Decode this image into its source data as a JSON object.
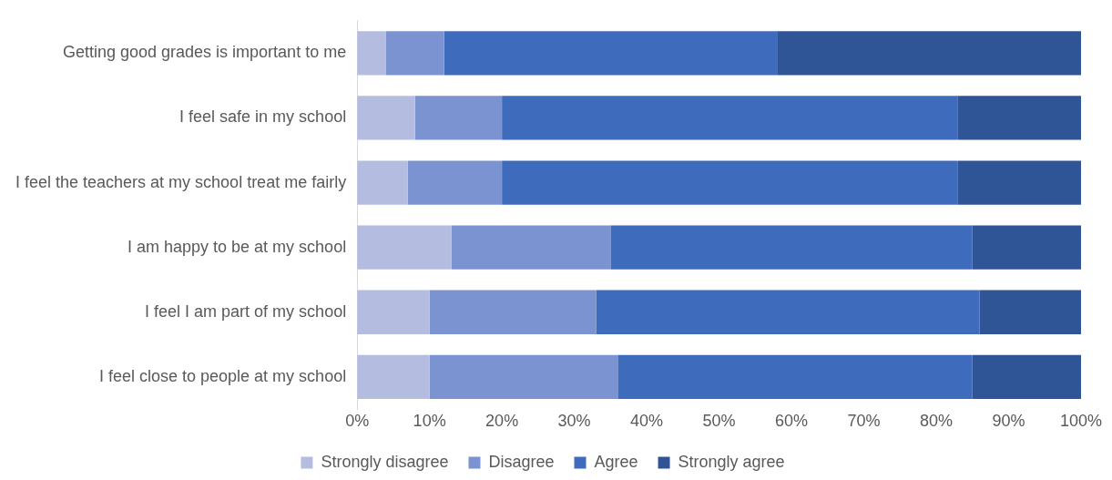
{
  "chart_data": {
    "type": "bar",
    "orientation": "horizontal",
    "stacked": true,
    "categories": [
      "Getting good grades is important to me",
      "I feel safe in my school",
      "I feel the teachers at my school treat me fairly",
      "I am happy to be at my school",
      "I feel I am part of my school",
      "I feel close to people at my school"
    ],
    "series": [
      {
        "name": "Strongly disagree",
        "color": "#b4bde0",
        "values": [
          4,
          8,
          7,
          13,
          10,
          10
        ]
      },
      {
        "name": "Disagree",
        "color": "#7b93d1",
        "values": [
          8,
          12,
          13,
          22,
          23,
          26
        ]
      },
      {
        "name": "Agree",
        "color": "#3f6bbd",
        "values": [
          46,
          63,
          63,
          50,
          53,
          49
        ]
      },
      {
        "name": "Strongly agree",
        "color": "#2f5597",
        "values": [
          42,
          17,
          17,
          15,
          14,
          15
        ]
      }
    ],
    "xlim": [
      0,
      100
    ],
    "xticks": [
      {
        "value": 0,
        "label": "0%"
      },
      {
        "value": 10,
        "label": "10%"
      },
      {
        "value": 20,
        "label": "20%"
      },
      {
        "value": 30,
        "label": "30%"
      },
      {
        "value": 40,
        "label": "40%"
      },
      {
        "value": 50,
        "label": "50%"
      },
      {
        "value": 60,
        "label": "60%"
      },
      {
        "value": 70,
        "label": "70%"
      },
      {
        "value": 80,
        "label": "80%"
      },
      {
        "value": 90,
        "label": "90%"
      },
      {
        "value": 100,
        "label": "100%"
      }
    ],
    "grid": false,
    "legend": "bottom"
  }
}
